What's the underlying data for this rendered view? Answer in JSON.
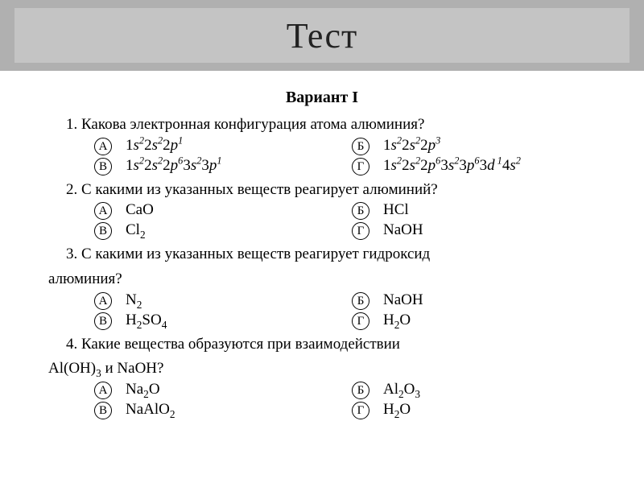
{
  "header": {
    "title": "Тест",
    "bar_color": "#b0b0b0",
    "inner_color": "#c4c4c4",
    "title_fontsize": 44,
    "title_color": "#222222"
  },
  "page": {
    "background": "#ffffff",
    "font_family": "Times New Roman",
    "body_fontsize": 19,
    "text_color": "#000000"
  },
  "variant_title": "Вариант  I",
  "questions": [
    {
      "num": "1.",
      "text": "1. Какова электронная конфигурация атома алюминия?",
      "options": {
        "A": "1s²2s²2p¹",
        "B": "1s²2s²2p⁶3s²3p¹",
        "Bk": "1s²2s²2p³",
        "G": "1s²2s²2p⁶3s²3p⁶3d¹4s²"
      }
    },
    {
      "num": "2.",
      "text": "2. С какими из указанных веществ реагирует алюминий?",
      "options": {
        "A": "CaO",
        "B": "Cl₂",
        "Bk": "HCl",
        "G": "NaOH"
      }
    },
    {
      "num": "3.",
      "text_line1": "3. С какими из указанных веществ реагирует гидроксид",
      "text_line2": "алюминия?",
      "options": {
        "A": "N₂",
        "B": "H₂SO₄",
        "Bk": "NaOH",
        "G": "H₂O"
      }
    },
    {
      "num": "4.",
      "text_line1": "4. Какие вещества образуются при взаимодействии",
      "text_line2": "Al(OH)₃ и NaOH?",
      "options": {
        "A": "Na₂O",
        "B": "NaAlO₂",
        "Bk": "Al₂O₃",
        "G": "H₂O"
      }
    }
  ],
  "option_labels": {
    "A": "А",
    "B": "В",
    "Bk": "Б",
    "G": "Г"
  }
}
